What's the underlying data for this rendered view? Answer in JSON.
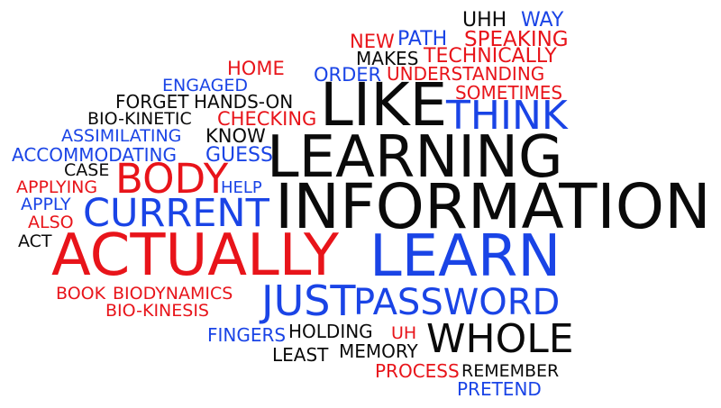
{
  "colors": {
    "red": "#e8141a",
    "blue": "#1a44e6",
    "black": "#0a0a0a"
  },
  "words": [
    {
      "text": "UHH",
      "color": "black"
    },
    {
      "text": "WAY",
      "color": "blue"
    },
    {
      "text": "NEW",
      "color": "red"
    },
    {
      "text": "PATH",
      "color": "blue"
    },
    {
      "text": "SPEAKING",
      "color": "red"
    },
    {
      "text": "MAKES",
      "color": "black"
    },
    {
      "text": "TECHNICALLY",
      "color": "red"
    },
    {
      "text": "HOME",
      "color": "red"
    },
    {
      "text": "ORDER",
      "color": "blue"
    },
    {
      "text": "UNDERSTANDING",
      "color": "red"
    },
    {
      "text": "ENGAGED",
      "color": "blue"
    },
    {
      "text": "SOMETIMES",
      "color": "red"
    },
    {
      "text": "FORGET",
      "color": "black"
    },
    {
      "text": "HANDS-ON",
      "color": "black"
    },
    {
      "text": "LIKE",
      "color": "black"
    },
    {
      "text": "THINK",
      "color": "blue"
    },
    {
      "text": "BIO-KINETIC",
      "color": "black"
    },
    {
      "text": "CHECKING",
      "color": "red"
    },
    {
      "text": "ASSIMILATING",
      "color": "blue"
    },
    {
      "text": "KNOW",
      "color": "black"
    },
    {
      "text": "LEARNING",
      "color": "black"
    },
    {
      "text": "ACCOMMODATING",
      "color": "blue"
    },
    {
      "text": "GUESS",
      "color": "blue"
    },
    {
      "text": "CASE",
      "color": "black"
    },
    {
      "text": "BODY",
      "color": "red"
    },
    {
      "text": "APPLYING",
      "color": "red"
    },
    {
      "text": "HELP",
      "color": "blue"
    },
    {
      "text": "APPLY",
      "color": "blue"
    },
    {
      "text": "CURRENT",
      "color": "blue"
    },
    {
      "text": "INFORMATION",
      "color": "black"
    },
    {
      "text": "ALSO",
      "color": "red"
    },
    {
      "text": "ACT",
      "color": "black"
    },
    {
      "text": "ACTUALLY",
      "color": "red"
    },
    {
      "text": "LEARN",
      "color": "blue"
    },
    {
      "text": "BOOK",
      "color": "red"
    },
    {
      "text": "BIODYNAMICS",
      "color": "red"
    },
    {
      "text": "JUST",
      "color": "blue"
    },
    {
      "text": "PASSWORD",
      "color": "blue"
    },
    {
      "text": "BIO-KINESIS",
      "color": "red"
    },
    {
      "text": "HOLDING",
      "color": "black"
    },
    {
      "text": "FINGERS",
      "color": "blue"
    },
    {
      "text": "UH",
      "color": "red"
    },
    {
      "text": "WHOLE",
      "color": "black"
    },
    {
      "text": "LEAST",
      "color": "black"
    },
    {
      "text": "MEMORY",
      "color": "black"
    },
    {
      "text": "PROCESS",
      "color": "red"
    },
    {
      "text": "REMEMBER",
      "color": "black"
    },
    {
      "text": "PRETEND",
      "color": "blue"
    }
  ]
}
